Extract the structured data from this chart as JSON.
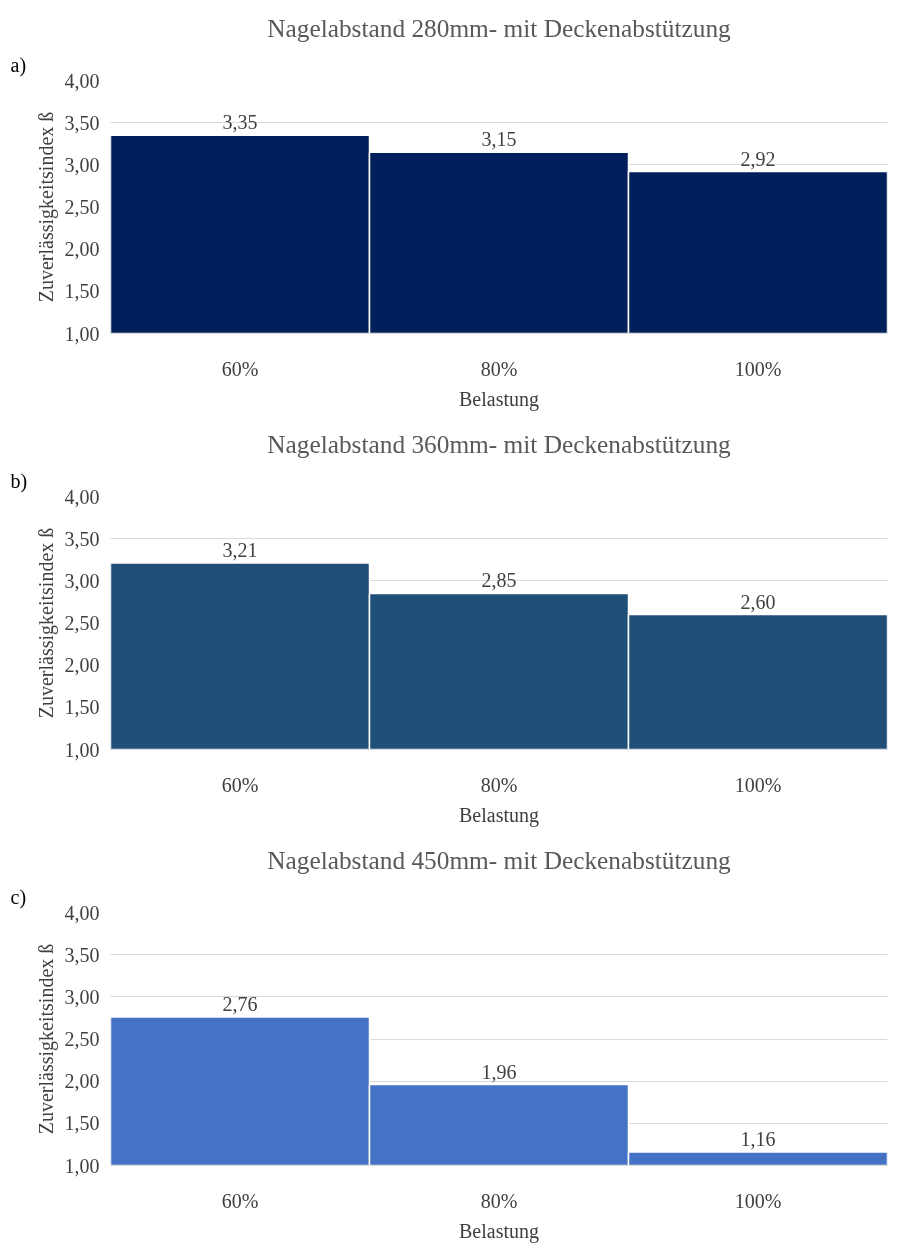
{
  "chart_data": [
    {
      "type": "bar",
      "title": "Nagelabstand 280mm- mit Deckenabstützung",
      "xlabel": "Belastung",
      "ylabel": "Zuverlässigkeitsindex ß",
      "annotations": [
        "a)"
      ],
      "categories": [
        "60%",
        "80%",
        "100%"
      ],
      "values": [
        3.35,
        3.15,
        2.92
      ],
      "value_labels": [
        "3,35",
        "3,15",
        "2,92"
      ],
      "color": "#001f5b",
      "ylim": [
        1,
        4
      ],
      "yticks": [
        {
          "value": 1,
          "label": "1,00"
        },
        {
          "value": 1.5,
          "label": "1,50"
        },
        {
          "value": 2,
          "label": "2,00"
        },
        {
          "value": 2.5,
          "label": "2,50"
        },
        {
          "value": 3,
          "label": "3,00"
        },
        {
          "value": 3.5,
          "label": "3,50"
        },
        {
          "value": 4,
          "label": "4,00"
        }
      ],
      "grid": "y"
    },
    {
      "type": "bar",
      "title": "Nagelabstand 360mm- mit Deckenabstützung",
      "xlabel": "Belastung",
      "ylabel": "Zuverlässigkeitsindex ß",
      "annotations": [
        "b)"
      ],
      "categories": [
        "60%",
        "80%",
        "100%"
      ],
      "values": [
        3.21,
        2.85,
        2.6
      ],
      "value_labels": [
        "3,21",
        "2,85",
        "2,60"
      ],
      "color": "#1f4e79",
      "ylim": [
        1,
        4
      ],
      "yticks": [
        {
          "value": 1,
          "label": "1,00"
        },
        {
          "value": 1.5,
          "label": "1,50"
        },
        {
          "value": 2,
          "label": "2,00"
        },
        {
          "value": 2.5,
          "label": "2,50"
        },
        {
          "value": 3,
          "label": "3,00"
        },
        {
          "value": 3.5,
          "label": "3,50"
        },
        {
          "value": 4,
          "label": "4,00"
        }
      ],
      "grid": "y"
    },
    {
      "type": "bar",
      "title": "Nagelabstand 450mm- mit Deckenabstützung",
      "xlabel": "Belastung",
      "ylabel": "Zuverlässigkeitsindex ß",
      "annotations": [
        "c)"
      ],
      "categories": [
        "60%",
        "80%",
        "100%"
      ],
      "values": [
        2.76,
        1.96,
        1.16
      ],
      "value_labels": [
        "2,76",
        "1,96",
        "1,16"
      ],
      "color": "#4472c4",
      "ylim": [
        1,
        4
      ],
      "yticks": [
        {
          "value": 1,
          "label": "1,00"
        },
        {
          "value": 1.5,
          "label": "1,50"
        },
        {
          "value": 2,
          "label": "2,00"
        },
        {
          "value": 2.5,
          "label": "2,50"
        },
        {
          "value": 3,
          "label": "3,00"
        },
        {
          "value": 3.5,
          "label": "3,50"
        },
        {
          "value": 4,
          "label": "4,00"
        }
      ],
      "grid": "y"
    }
  ]
}
